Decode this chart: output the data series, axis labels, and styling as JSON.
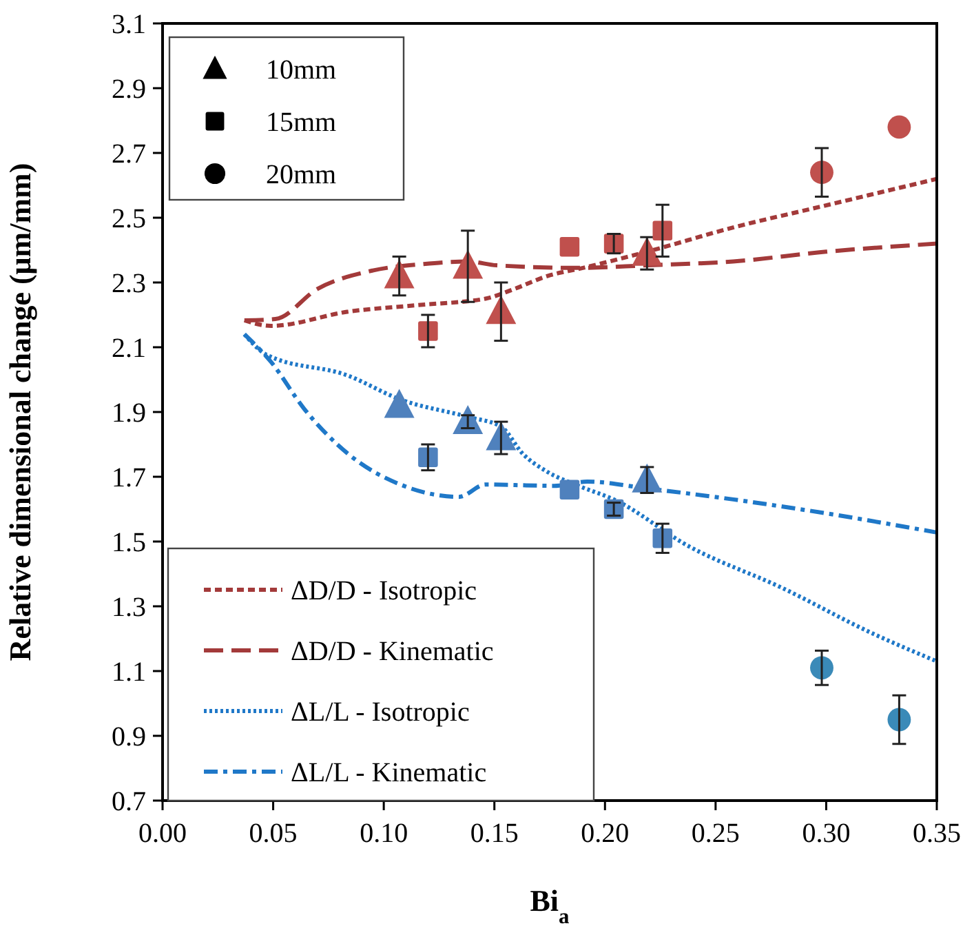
{
  "chart_data": {
    "type": "scatter",
    "xlabel": "Bi$_{a}$",
    "ylabel": "Relative dimensional change (μm/mm)",
    "xlim": [
      0,
      0.35
    ],
    "ylim": [
      0.7,
      3.1
    ],
    "xticks": [
      {
        "value": 0,
        "label": "0.00"
      },
      {
        "value": 0.05,
        "label": "0.05"
      },
      {
        "value": 0.1,
        "label": "0.10"
      },
      {
        "value": 0.15,
        "label": "0.15"
      },
      {
        "value": 0.2,
        "label": "0.20"
      },
      {
        "value": 0.25,
        "label": "0.25"
      },
      {
        "value": 0.3,
        "label": "0.30"
      },
      {
        "value": 0.35,
        "label": "0.35"
      }
    ],
    "yticks": [
      0.7,
      0.9,
      1.1,
      1.3,
      1.5,
      1.7,
      1.9,
      2.1,
      2.3,
      2.5,
      2.7,
      2.9,
      3.1
    ],
    "grid": false,
    "legend": "left",
    "annotations": [
      "10mm",
      "15mm",
      "20mm"
    ],
    "series": [
      {
        "marker": "triangle",
        "color": "#000000",
        "x": [
          0.107,
          0.138,
          0.153,
          0.219,
          0.107,
          0.138,
          0.153,
          0.219
        ],
        "values": [
          2.32,
          2.35,
          2.21,
          2.39,
          1.92,
          1.87,
          1.82,
          1.69
        ],
        "errors": [
          0.06,
          0.11,
          0.09,
          0.05,
          null,
          0.02,
          0.05,
          0.04
        ],
        "colors": [
          "#c0504d",
          "#c0504d",
          "#c0504d",
          "#c0504d",
          "#4f81bd",
          "#4f81bd",
          "#4f81bd",
          "#4f81bd"
        ]
      },
      {
        "marker": "square",
        "color": "#000000",
        "x": [
          0.12,
          0.184,
          0.204,
          0.226,
          0.12,
          0.184,
          0.204,
          0.226
        ],
        "values": [
          2.15,
          2.41,
          2.42,
          2.46,
          1.76,
          1.66,
          1.6,
          1.51
        ],
        "errors": [
          0.05,
          null,
          0.03,
          0.08,
          0.04,
          null,
          0.02,
          0.045
        ],
        "colors": [
          "#c0504d",
          "#c0504d",
          "#c0504d",
          "#c0504d",
          "#4f81bd",
          "#4f81bd",
          "#4f81bd",
          "#4f81bd"
        ]
      },
      {
        "marker": "circle",
        "color": "#000000",
        "x": [
          0.298,
          0.333,
          0.298,
          0.333
        ],
        "values": [
          2.64,
          2.78,
          1.11,
          0.95
        ],
        "errors": [
          0.075,
          null,
          0.053,
          0.075
        ],
        "colors": [
          "#c0504d",
          "#c0504d",
          "#3a8ab8",
          "#3a8ab8"
        ]
      },
      {
        "name": "ΔD/D - Isotropic",
        "type": "line",
        "line_style": "dashed",
        "color": "#a33a3a",
        "x": [
          0.037,
          0.049,
          0.084,
          0.115,
          0.146,
          0.159,
          0.174,
          0.19,
          0.219,
          0.258,
          0.298,
          0.35
        ],
        "values": [
          2.183,
          2.166,
          2.21,
          2.23,
          2.25,
          2.28,
          2.32,
          2.345,
          2.395,
          2.47,
          2.535,
          2.62
        ]
      },
      {
        "name": "ΔD/D - Kinematic",
        "type": "line",
        "line_style": "longdash",
        "color": "#a33a3a",
        "x": [
          0.037,
          0.051,
          0.07,
          0.095,
          0.118,
          0.138,
          0.151,
          0.188,
          0.219,
          0.258,
          0.3,
          0.35
        ],
        "values": [
          2.183,
          2.187,
          2.28,
          2.337,
          2.357,
          2.365,
          2.353,
          2.345,
          2.353,
          2.365,
          2.395,
          2.42
        ]
      },
      {
        "name": "ΔL/L - Isotropic",
        "type": "line",
        "line_style": "dotted",
        "color": "#1f78c8",
        "x": [
          0.037,
          0.047,
          0.084,
          0.107,
          0.138,
          0.153,
          0.163,
          0.174,
          0.188,
          0.204,
          0.238,
          0.28,
          0.321,
          0.35
        ],
        "values": [
          2.14,
          2.077,
          2.012,
          1.94,
          1.885,
          1.855,
          1.77,
          1.715,
          1.672,
          1.63,
          1.485,
          1.357,
          1.216,
          1.13
        ]
      },
      {
        "name": "ΔL/L - Kinematic",
        "type": "line",
        "line_style": "dashdot",
        "color": "#1f78c8",
        "x": [
          0.037,
          0.049,
          0.064,
          0.084,
          0.109,
          0.134,
          0.146,
          0.177,
          0.192,
          0.219,
          0.258,
          0.3,
          0.35
        ],
        "values": [
          2.14,
          2.055,
          1.91,
          1.77,
          1.672,
          1.638,
          1.676,
          1.672,
          1.685,
          1.664,
          1.63,
          1.587,
          1.528
        ]
      }
    ]
  }
}
